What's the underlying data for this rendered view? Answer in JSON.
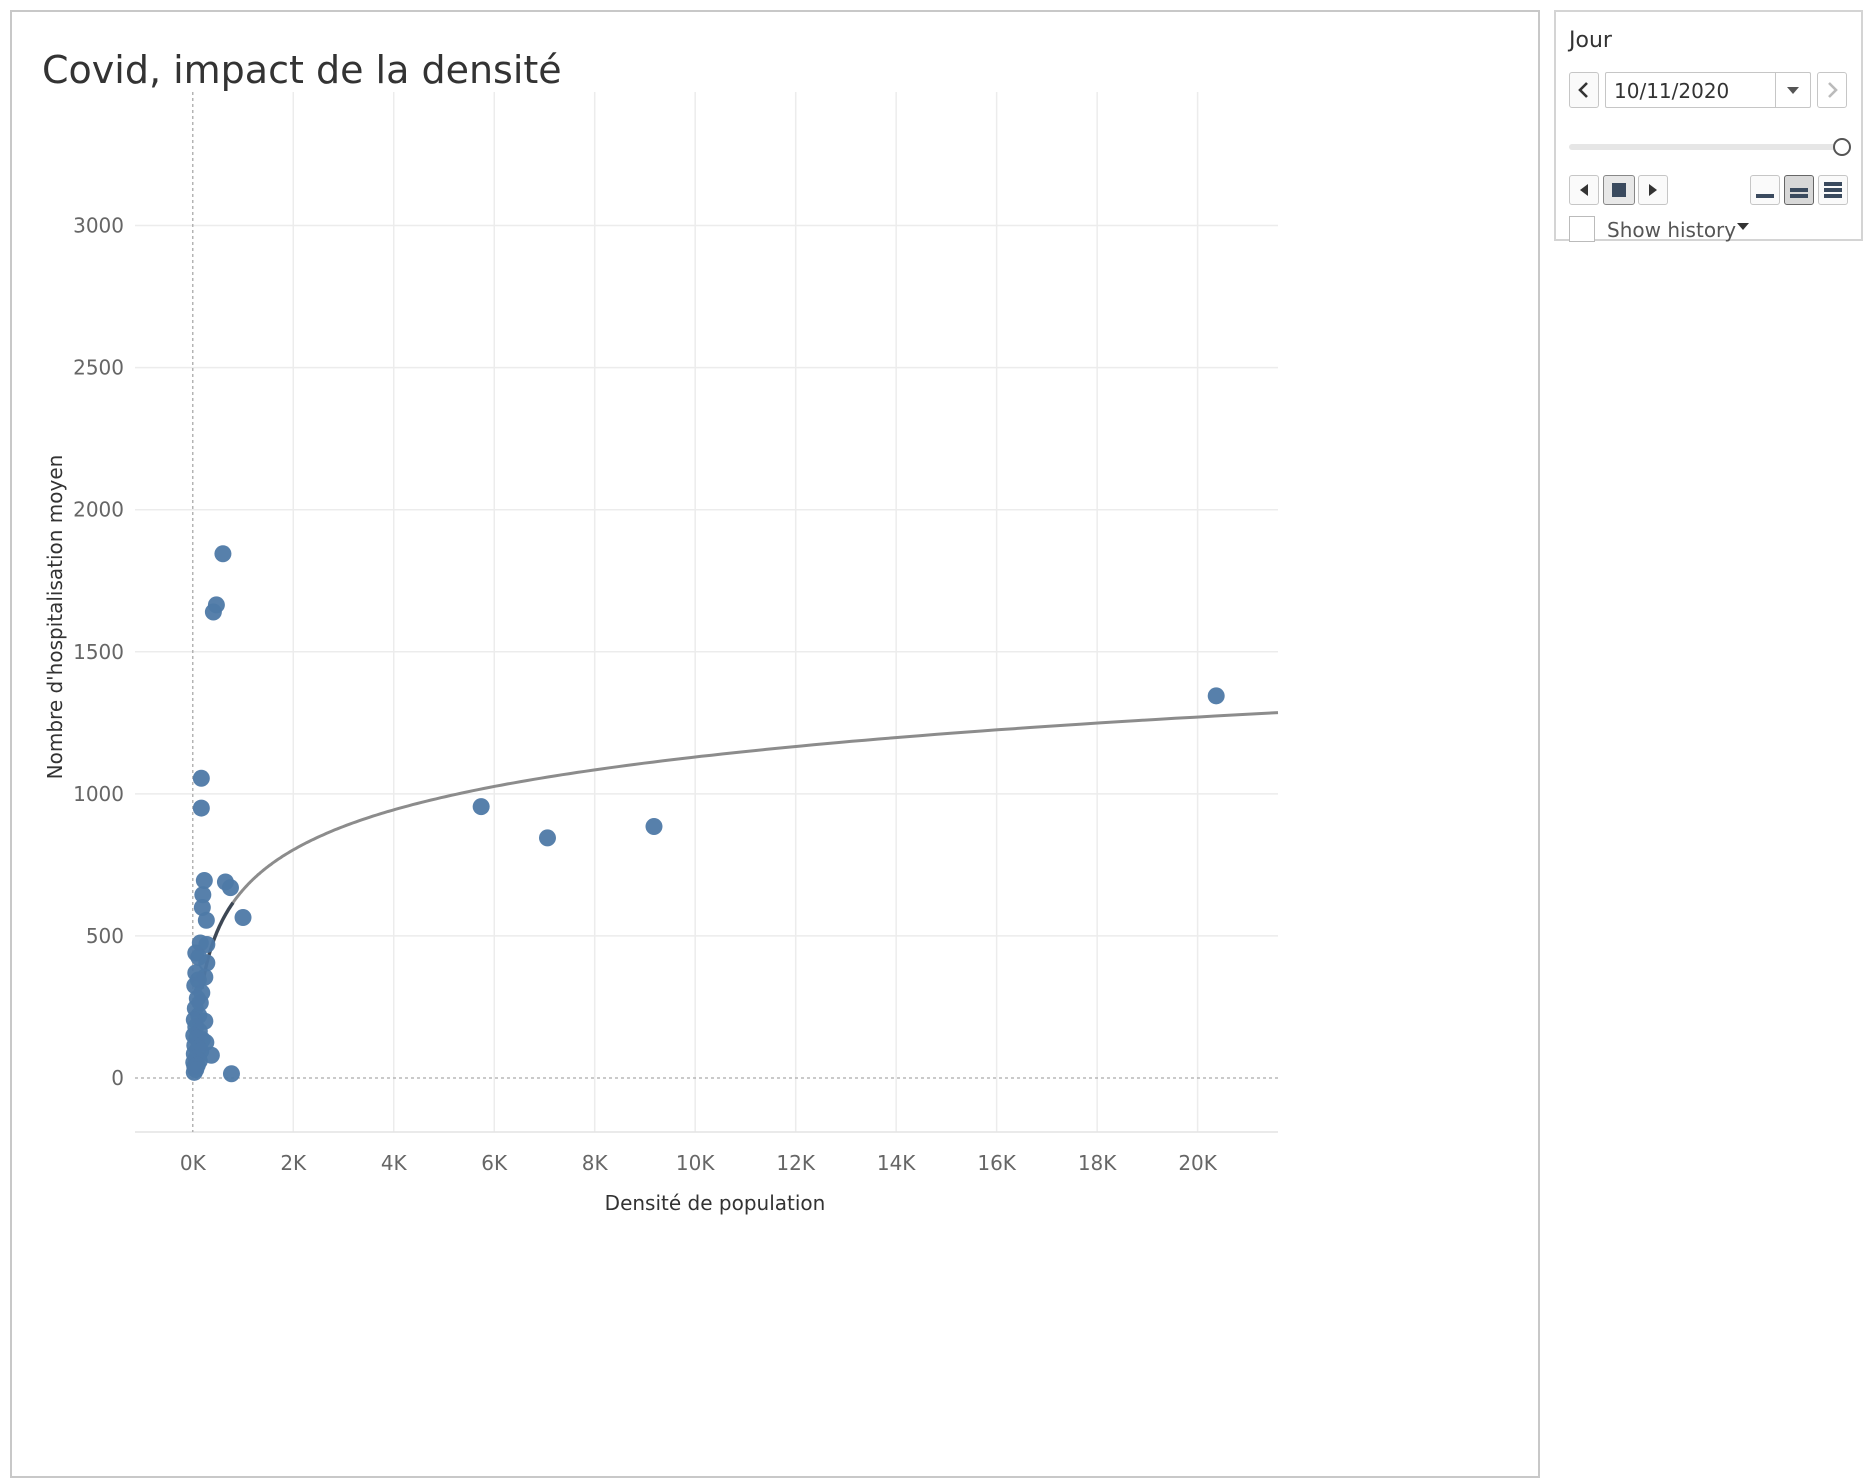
{
  "title": "Covid, impact de la densité",
  "controls": {
    "label": "Jour",
    "date_value": "10/11/2020",
    "slider_position": 1.0,
    "show_history_label": "Show history",
    "show_history_checked": false,
    "icons": {
      "prev": "chevron-left-icon",
      "next": "chevron-right-icon",
      "dropdown": "caret-down-icon",
      "step_back": "step-back-icon",
      "stop": "stop-icon",
      "step_forward": "step-forward-icon",
      "speed_slow": "speed-slow-icon",
      "speed_medium": "speed-medium-icon",
      "speed_fast": "speed-fast-icon"
    }
  },
  "chart_data": {
    "type": "scatter",
    "title": "Covid, impact de la densité",
    "xlabel": "Densité de population",
    "ylabel": "Nombre d'hospitalisation moyen",
    "xlim": [
      -1150,
      21600
    ],
    "ylim": [
      -190,
      3470
    ],
    "x_ticks": [
      0,
      2000,
      4000,
      6000,
      8000,
      10000,
      12000,
      14000,
      16000,
      18000,
      20000
    ],
    "x_tick_labels": [
      "0K",
      "2K",
      "4K",
      "6K",
      "8K",
      "10K",
      "12K",
      "14K",
      "16K",
      "18K",
      "20K"
    ],
    "y_ticks": [
      0,
      500,
      1000,
      1500,
      2000,
      2500,
      3000
    ],
    "y_tick_labels": [
      "0",
      "500",
      "1000",
      "1500",
      "2000",
      "2500",
      "3000"
    ],
    "grid": true,
    "point_color": "#4e79a7",
    "trend_color": "#8c8c8c",
    "trend": {
      "model": "logarithmic",
      "a": -740,
      "b": 203,
      "x_start": 180,
      "x_end": 21600
    },
    "points": [
      [
        20370,
        1345
      ],
      [
        5740,
        955
      ],
      [
        7060,
        845
      ],
      [
        9180,
        885
      ],
      [
        600,
        1845
      ],
      [
        470,
        1665
      ],
      [
        410,
        1640
      ],
      [
        170,
        1055
      ],
      [
        170,
        950
      ],
      [
        230,
        695
      ],
      [
        650,
        690
      ],
      [
        750,
        670
      ],
      [
        200,
        645
      ],
      [
        190,
        600
      ],
      [
        270,
        555
      ],
      [
        1000,
        565
      ],
      [
        280,
        470
      ],
      [
        150,
        475
      ],
      [
        60,
        440
      ],
      [
        120,
        425
      ],
      [
        280,
        405
      ],
      [
        60,
        370
      ],
      [
        240,
        355
      ],
      [
        110,
        345
      ],
      [
        40,
        325
      ],
      [
        180,
        300
      ],
      [
        90,
        280
      ],
      [
        150,
        265
      ],
      [
        50,
        245
      ],
      [
        120,
        220
      ],
      [
        30,
        205
      ],
      [
        240,
        200
      ],
      [
        60,
        180
      ],
      [
        130,
        165
      ],
      [
        20,
        150
      ],
      [
        80,
        140
      ],
      [
        190,
        135
      ],
      [
        260,
        125
      ],
      [
        40,
        115
      ],
      [
        110,
        105
      ],
      [
        160,
        95
      ],
      [
        30,
        85
      ],
      [
        370,
        80
      ],
      [
        70,
        70
      ],
      [
        130,
        60
      ],
      [
        20,
        55
      ],
      [
        90,
        45
      ],
      [
        40,
        40
      ],
      [
        60,
        30
      ],
      [
        30,
        20
      ],
      [
        770,
        15
      ]
    ]
  }
}
